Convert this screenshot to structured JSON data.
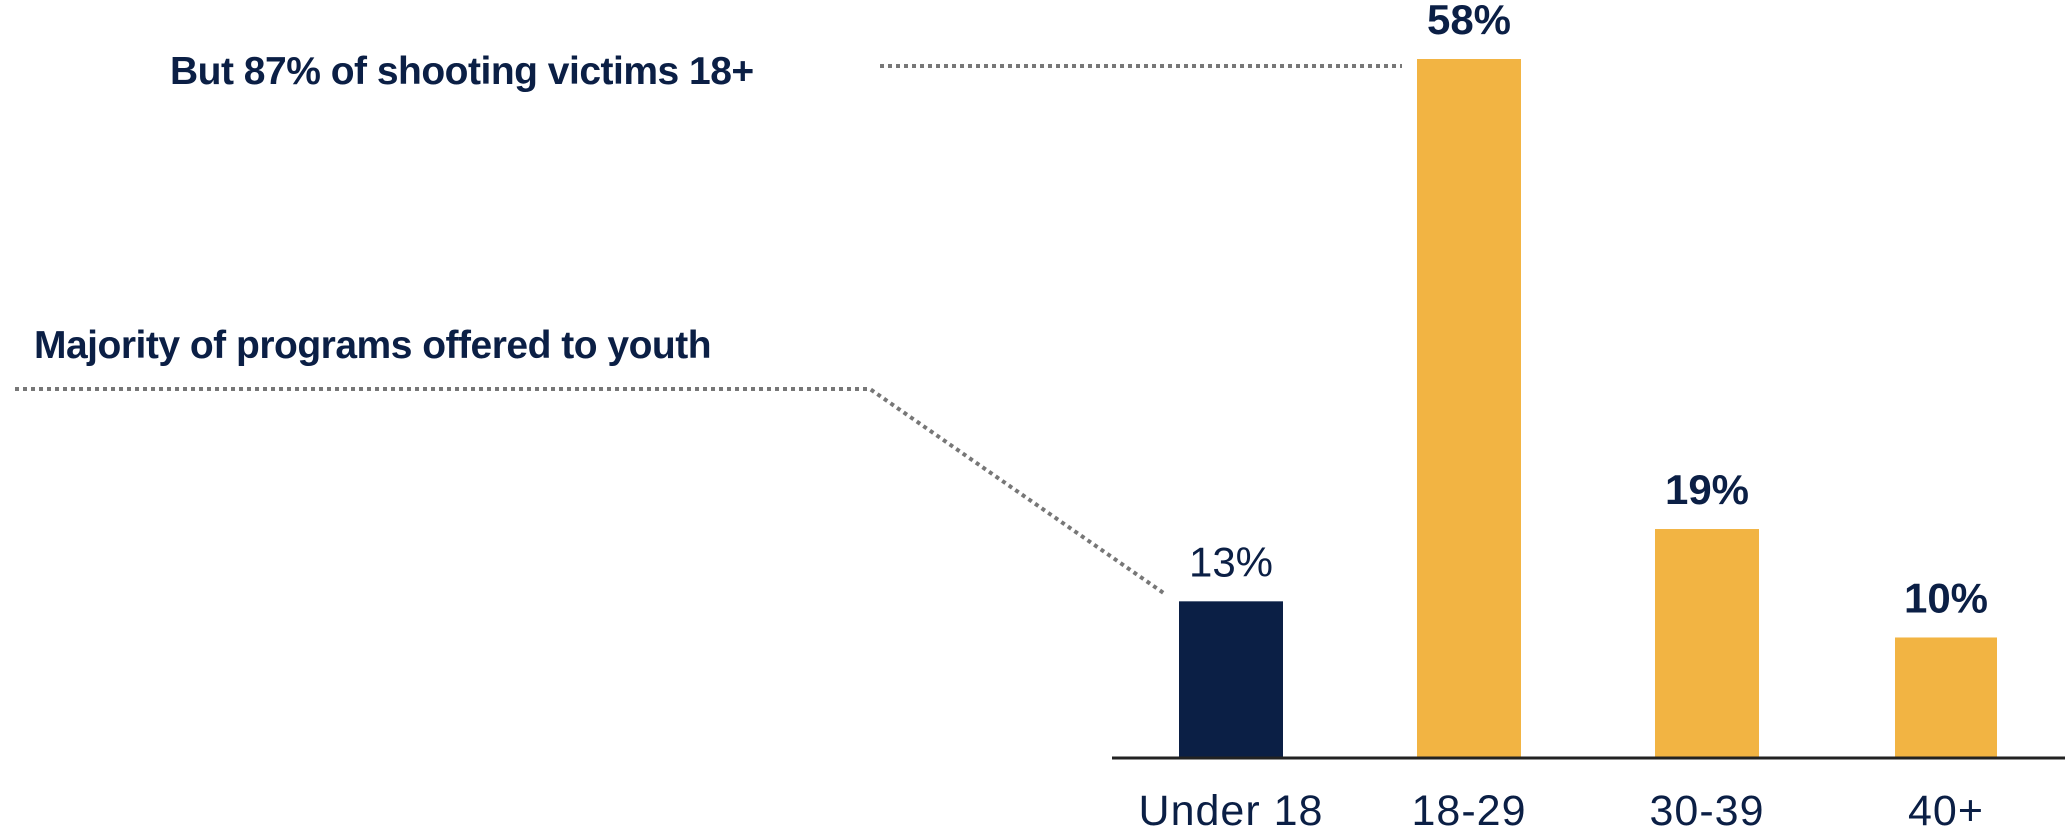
{
  "chart_data": {
    "type": "bar",
    "categories": [
      "Under 18",
      "18-29",
      "30-39",
      "40+"
    ],
    "values": [
      13,
      58,
      19,
      10
    ],
    "value_labels": [
      "13%",
      "58%",
      "19%",
      "10%"
    ],
    "title": "",
    "xlabel": "",
    "ylabel": "",
    "ylim": [
      0,
      58
    ],
    "grid": false,
    "legend": "none",
    "colors": {
      "highlight": "#0b1f45",
      "default": "#f2b443",
      "text": "#0b1f45",
      "baseline": "#222222",
      "leader": "#777777"
    },
    "annotations": [
      "But 87% of shooting victims 18+",
      "Majority of programs offered to youth"
    ]
  }
}
